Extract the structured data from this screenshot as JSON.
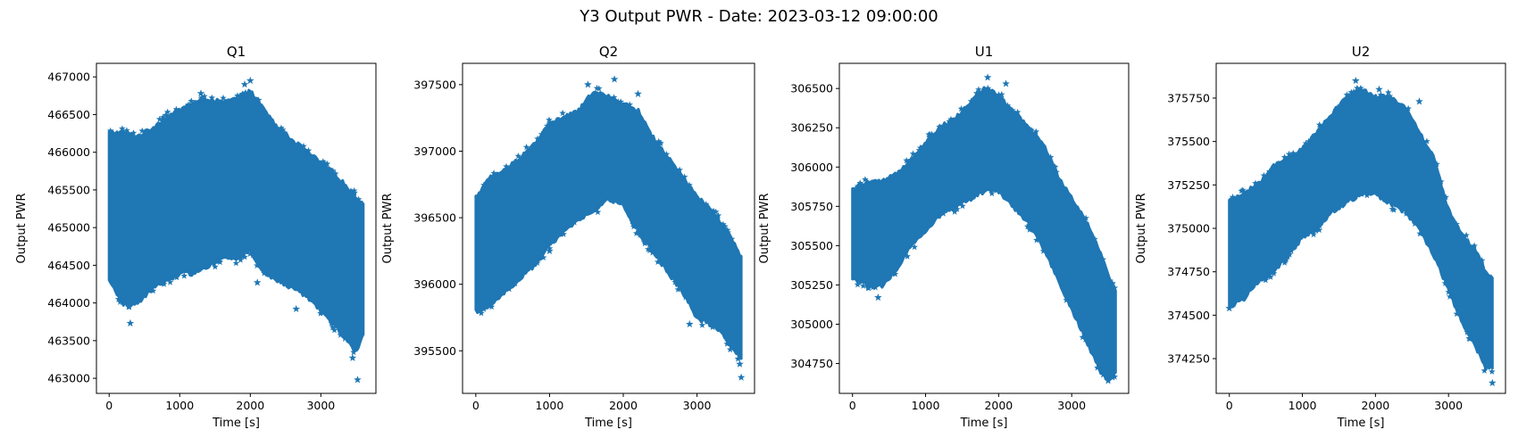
{
  "suptitle": "Y3 Output PWR - Date: 2023-03-12 09:00:00",
  "colors": {
    "series": "#1f77b4",
    "axis": "#000000",
    "background": "#ffffff"
  },
  "chart_data": [
    {
      "type": "scatter",
      "marker": "star",
      "title": "Q1",
      "xlabel": "Time [s]",
      "ylabel": "Output PWR",
      "xlim": [
        -180,
        3780
      ],
      "ylim": [
        462800,
        467180
      ],
      "xticks": [
        0,
        1000,
        2000,
        3000
      ],
      "yticks": [
        463000,
        463500,
        464000,
        464500,
        465000,
        465500,
        466000,
        466500,
        467000
      ],
      "envelope": {
        "x": [
          0,
          200,
          400,
          600,
          800,
          1000,
          1200,
          1400,
          1600,
          1800,
          2000,
          2200,
          2400,
          2600,
          2800,
          3000,
          3200,
          3400,
          3500,
          3600
        ],
        "upper": [
          466250,
          466250,
          466200,
          466300,
          466450,
          466550,
          466650,
          466700,
          466650,
          466700,
          466800,
          466550,
          466300,
          466150,
          466000,
          465850,
          465700,
          465500,
          465400,
          465300
        ],
        "lower": [
          464300,
          464000,
          464000,
          464200,
          464300,
          464400,
          464400,
          464500,
          464600,
          464600,
          464700,
          464400,
          464300,
          464200,
          464100,
          463900,
          463700,
          463500,
          463350,
          463600
        ]
      },
      "outliers": [
        [
          1300,
          466780
        ],
        [
          1920,
          466900
        ],
        [
          2000,
          466950
        ],
        [
          300,
          463730
        ],
        [
          3520,
          462980
        ],
        [
          3450,
          463270
        ],
        [
          2100,
          464270
        ],
        [
          2650,
          463920
        ]
      ]
    },
    {
      "type": "scatter",
      "marker": "star",
      "title": "Q2",
      "xlabel": "Time [s]",
      "ylabel": "Output PWR",
      "xlim": [
        -180,
        3780
      ],
      "ylim": [
        395180,
        397660
      ],
      "xticks": [
        0,
        1000,
        2000,
        3000
      ],
      "yticks": [
        395500,
        396000,
        396500,
        397000,
        397500
      ],
      "envelope": {
        "x": [
          0,
          200,
          400,
          600,
          800,
          1000,
          1200,
          1400,
          1600,
          1800,
          2000,
          2200,
          2400,
          2600,
          2800,
          3000,
          3200,
          3400,
          3500,
          3600
        ],
        "upper": [
          396650,
          396800,
          396850,
          396950,
          397050,
          397200,
          397250,
          397300,
          397450,
          397400,
          397350,
          397300,
          397100,
          396950,
          396800,
          396650,
          396550,
          396400,
          396300,
          396200
        ],
        "lower": [
          395800,
          395850,
          395950,
          396050,
          396150,
          396300,
          396400,
          396500,
          396550,
          396650,
          396600,
          396400,
          396250,
          396100,
          395950,
          395750,
          395700,
          395600,
          395500,
          395450
        ]
      },
      "outliers": [
        [
          1880,
          397540
        ],
        [
          1520,
          397500
        ],
        [
          2200,
          397430
        ],
        [
          3600,
          395300
        ],
        [
          3580,
          395400
        ],
        [
          1000,
          396250
        ],
        [
          2900,
          395700
        ]
      ]
    },
    {
      "type": "scatter",
      "marker": "star",
      "title": "U1",
      "xlabel": "Time [s]",
      "ylabel": "Output PWR",
      "xlim": [
        -180,
        3780
      ],
      "ylim": [
        304560,
        306660
      ],
      "xticks": [
        0,
        1000,
        2000,
        3000
      ],
      "yticks": [
        304750,
        305000,
        305250,
        305500,
        305750,
        306000,
        306250,
        306500
      ],
      "envelope": {
        "x": [
          0,
          200,
          400,
          600,
          800,
          1000,
          1200,
          1400,
          1600,
          1800,
          2000,
          2200,
          2400,
          2600,
          2800,
          3000,
          3200,
          3400,
          3500,
          3600
        ],
        "upper": [
          305850,
          305900,
          305900,
          305950,
          306050,
          306150,
          306250,
          306300,
          306400,
          306500,
          306450,
          306350,
          306250,
          306150,
          305950,
          305800,
          305650,
          305450,
          305300,
          305200
        ],
        "lower": [
          305300,
          305250,
          305250,
          305350,
          305500,
          305600,
          305700,
          305750,
          305800,
          305850,
          305850,
          305750,
          305650,
          305500,
          305300,
          305100,
          304900,
          304700,
          304650,
          304700
        ]
      },
      "outliers": [
        [
          1850,
          306570
        ],
        [
          2100,
          306530
        ],
        [
          350,
          305170
        ],
        [
          3500,
          304640
        ]
      ]
    },
    {
      "type": "scatter",
      "marker": "star",
      "title": "U2",
      "xlabel": "Time [s]",
      "ylabel": "Output PWR",
      "xlim": [
        -180,
        3780
      ],
      "ylim": [
        374050,
        375950
      ],
      "xticks": [
        0,
        1000,
        2000,
        3000
      ],
      "yticks": [
        374250,
        374500,
        374750,
        375000,
        375250,
        375500,
        375750
      ],
      "envelope": {
        "x": [
          0,
          200,
          400,
          600,
          800,
          1000,
          1200,
          1400,
          1600,
          1800,
          2000,
          2200,
          2400,
          2600,
          2800,
          3000,
          3200,
          3400,
          3500,
          3600
        ],
        "upper": [
          375150,
          375200,
          375250,
          375350,
          375400,
          375450,
          375550,
          375650,
          375750,
          375800,
          375750,
          375750,
          375700,
          375550,
          375400,
          375100,
          374950,
          374850,
          374750,
          374700
        ],
        "lower": [
          374550,
          374600,
          374700,
          374750,
          374850,
          374950,
          375000,
          375100,
          375150,
          375200,
          375200,
          375150,
          375100,
          375000,
          374850,
          374650,
          374450,
          374300,
          374200,
          374200
        ]
      },
      "outliers": [
        [
          1730,
          375850
        ],
        [
          2050,
          375800
        ],
        [
          2600,
          375730
        ],
        [
          3600,
          374110
        ],
        [
          0,
          374540
        ]
      ]
    }
  ]
}
